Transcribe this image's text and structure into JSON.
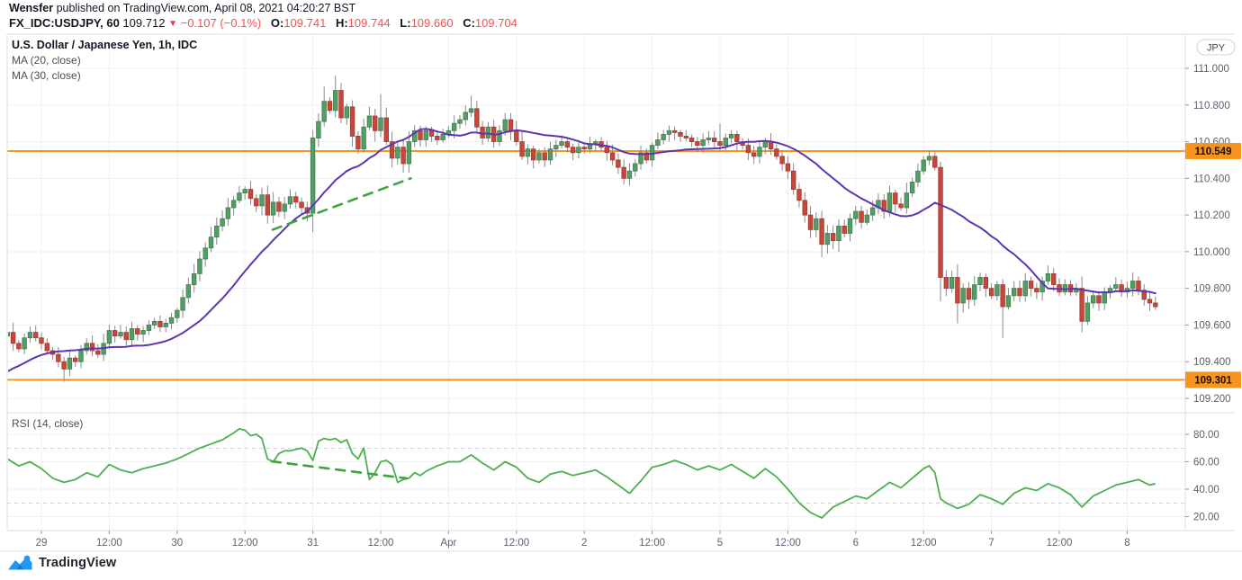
{
  "header": {
    "author": "Wensfer",
    "published": " published on TradingView.com, April 08, 2021 04:20:27 BST"
  },
  "symbol_bar": {
    "symbol": "FX_IDC:USDJPY, 60",
    "price": "109.712",
    "down_arrow": "▼",
    "change": "−0.107 (−0.1%)",
    "o_label": "O:",
    "o": "109.741",
    "h_label": "H:",
    "h": "109.744",
    "l_label": "L:",
    "l": "109.660",
    "c_label": "C:",
    "c": "109.704"
  },
  "legend": {
    "title": "U.S. Dollar / Japanese Yen, 1h, IDC",
    "ma20": "MA (20, close)",
    "ma30": "MA (30, close)",
    "rsi": "RSI (14, close)"
  },
  "logo": {
    "text": "TradingView"
  },
  "colors": {
    "up": "#539e66",
    "up_border": "#3e7f50",
    "down": "#c9463d",
    "down_border": "#a23930",
    "wick": "#8a8a8d",
    "ma20": "#5e35b1",
    "ma30": "#00bcd4",
    "level": "#f7941d",
    "level_text": "#201000",
    "rsi": "#4caf50",
    "divergence": "#41a33e",
    "grid": "#f0f0f2",
    "band": "#cfd2dc",
    "border": "#dcdee5",
    "axis_text": "#5b616e",
    "tick": "#9598a1",
    "accent_red": "#ef5350",
    "logo_blue": "#2196f3"
  },
  "price_axis": {
    "currency_badge": "JPY",
    "ticks": [
      {
        "value": 111.0,
        "label": "111.000"
      },
      {
        "value": 110.8,
        "label": "110.800"
      },
      {
        "value": 110.6,
        "label": "110.600"
      },
      {
        "value": 110.4,
        "label": "110.400"
      },
      {
        "value": 110.2,
        "label": "110.200"
      },
      {
        "value": 110.0,
        "label": "110.000"
      },
      {
        "value": 109.8,
        "label": "109.800"
      },
      {
        "value": 109.6,
        "label": "109.600"
      },
      {
        "value": 109.4,
        "label": "109.400"
      },
      {
        "value": 109.2,
        "label": "109.200"
      }
    ]
  },
  "rsi_axis": {
    "ticks": [
      {
        "value": 80,
        "label": "80.00"
      },
      {
        "value": 60,
        "label": "60.00"
      },
      {
        "value": 40,
        "label": "40.00"
      },
      {
        "value": 20,
        "label": "20.00"
      }
    ]
  },
  "time_axis": {
    "labels": [
      {
        "t": 0,
        "text": "29"
      },
      {
        "t": 12,
        "text": "12:00"
      },
      {
        "t": 24,
        "text": "30"
      },
      {
        "t": 36,
        "text": "12:00"
      },
      {
        "t": 48,
        "text": "31"
      },
      {
        "t": 60,
        "text": "12:00"
      },
      {
        "t": 72,
        "text": "Apr"
      },
      {
        "t": 84,
        "text": "12:00"
      },
      {
        "t": 96,
        "text": "2"
      },
      {
        "t": 108,
        "text": "12:00"
      },
      {
        "t": 120,
        "text": "5"
      },
      {
        "t": 132,
        "text": "12:00"
      },
      {
        "t": 144,
        "text": "6"
      },
      {
        "t": 156,
        "text": "12:00"
      },
      {
        "t": 168,
        "text": "7"
      },
      {
        "t": 180,
        "text": "12:00"
      },
      {
        "t": 192,
        "text": "8"
      }
    ]
  },
  "chart_data": {
    "type": "candlestick",
    "title": "U.S. Dollar / Japanese Yen, 1h, IDC",
    "symbol": "USDJPY",
    "interval": "60",
    "x_unit": "hours since Mar 29 00:00 (weekend hidden)",
    "x_range": [
      -6,
      197
    ],
    "price_view_range": [
      109.14,
      111.19
    ],
    "rsi_view_range": [
      10,
      95
    ],
    "levels": [
      {
        "value": 110.549,
        "label": "110.549"
      },
      {
        "value": 109.301,
        "label": "109.301"
      }
    ],
    "ma": [
      {
        "period": 20,
        "color_key": "ma20"
      },
      {
        "period": 30,
        "color_key": "ma30"
      }
    ],
    "ma_seed": {
      "from": 109.08,
      "to": 109.5,
      "count": 24
    },
    "rsi_band": [
      30,
      70
    ],
    "trendlines": [
      {
        "pane": "price",
        "from": [
          40.9,
          110.12
        ],
        "to": [
          65.3,
          110.4
        ]
      },
      {
        "pane": "rsi",
        "from": [
          40.7,
          60.3
        ],
        "to": [
          64.6,
          47.9
        ]
      }
    ],
    "price_anchors": [
      [
        -6,
        109.56
      ],
      [
        -5,
        109.5
      ],
      [
        -4,
        109.47
      ],
      [
        -3,
        109.53
      ],
      [
        -2,
        109.56
      ],
      [
        -1,
        109.53
      ],
      [
        0,
        109.5
      ],
      [
        1,
        109.46
      ],
      [
        2,
        109.44
      ],
      [
        3,
        109.4
      ],
      [
        4,
        109.36
      ],
      [
        5,
        109.42
      ],
      [
        6,
        109.4
      ],
      [
        7,
        109.46
      ],
      [
        8,
        109.5
      ],
      [
        9,
        109.46
      ],
      [
        10,
        109.44
      ],
      [
        11,
        109.5
      ],
      [
        12,
        109.57
      ],
      [
        13,
        109.54
      ],
      [
        14,
        109.56
      ],
      [
        15,
        109.52
      ],
      [
        16,
        109.58
      ],
      [
        17,
        109.55
      ],
      [
        18,
        109.57
      ],
      [
        19,
        109.6
      ],
      [
        20,
        109.62
      ],
      [
        21,
        109.59
      ],
      [
        22,
        109.61
      ],
      [
        23,
        109.64
      ],
      [
        24,
        109.68
      ],
      [
        25,
        109.75
      ],
      [
        26,
        109.82
      ],
      [
        27,
        109.88
      ],
      [
        28,
        109.96
      ],
      [
        29,
        110.02
      ],
      [
        30,
        110.08
      ],
      [
        31,
        110.14
      ],
      [
        32,
        110.18
      ],
      [
        33,
        110.24
      ],
      [
        34,
        110.28
      ],
      [
        35,
        110.32
      ],
      [
        36,
        110.34
      ],
      [
        37,
        110.29
      ],
      [
        38,
        110.25
      ],
      [
        39,
        110.31
      ],
      [
        40,
        110.2
      ],
      [
        41,
        110.27
      ],
      [
        42,
        110.22
      ],
      [
        43,
        110.26
      ],
      [
        44,
        110.3
      ],
      [
        45,
        110.27
      ],
      [
        46,
        110.24
      ],
      [
        47,
        110.21
      ],
      [
        48,
        110.62
      ],
      [
        49,
        110.71
      ],
      [
        50,
        110.82
      ],
      [
        51,
        110.77
      ],
      [
        52,
        110.88
      ],
      [
        53,
        110.73
      ],
      [
        54,
        110.79
      ],
      [
        55,
        110.63
      ],
      [
        56,
        110.56
      ],
      [
        57,
        110.68
      ],
      [
        58,
        110.74
      ],
      [
        59,
        110.66
      ],
      [
        60,
        110.73
      ],
      [
        61,
        110.6
      ],
      [
        62,
        110.51
      ],
      [
        63,
        110.57
      ],
      [
        64,
        110.48
      ],
      [
        65,
        110.6
      ],
      [
        66,
        110.66
      ],
      [
        67,
        110.61
      ],
      [
        68,
        110.66
      ],
      [
        69,
        110.63
      ],
      [
        70,
        110.61
      ],
      [
        71,
        110.64
      ],
      [
        72,
        110.66
      ],
      [
        73,
        110.7
      ],
      [
        74,
        110.72
      ],
      [
        75,
        110.76
      ],
      [
        76,
        110.78
      ],
      [
        77,
        110.68
      ],
      [
        78,
        110.62
      ],
      [
        79,
        110.68
      ],
      [
        80,
        110.6
      ],
      [
        81,
        110.66
      ],
      [
        82,
        110.72
      ],
      [
        83,
        110.66
      ],
      [
        84,
        110.6
      ],
      [
        85,
        110.52
      ],
      [
        86,
        110.56
      ],
      [
        87,
        110.5
      ],
      [
        88,
        110.54
      ],
      [
        89,
        110.5
      ],
      [
        90,
        110.56
      ],
      [
        91,
        110.58
      ],
      [
        92,
        110.6
      ],
      [
        93,
        110.57
      ],
      [
        94,
        110.54
      ],
      [
        95,
        110.57
      ],
      [
        96,
        110.56
      ],
      [
        97,
        110.59
      ],
      [
        98,
        110.6
      ],
      [
        99,
        110.57
      ],
      [
        100,
        110.54
      ],
      [
        101,
        110.5
      ],
      [
        102,
        110.46
      ],
      [
        103,
        110.4
      ],
      [
        104,
        110.44
      ],
      [
        105,
        110.48
      ],
      [
        106,
        110.54
      ],
      [
        107,
        110.5
      ],
      [
        108,
        110.58
      ],
      [
        109,
        110.61
      ],
      [
        110,
        110.64
      ],
      [
        111,
        110.66
      ],
      [
        112,
        110.65
      ],
      [
        113,
        110.63
      ],
      [
        114,
        110.62
      ],
      [
        115,
        110.6
      ],
      [
        116,
        110.58
      ],
      [
        117,
        110.61
      ],
      [
        118,
        110.62
      ],
      [
        119,
        110.6
      ],
      [
        120,
        110.58
      ],
      [
        121,
        110.62
      ],
      [
        122,
        110.64
      ],
      [
        123,
        110.6
      ],
      [
        124,
        110.58
      ],
      [
        125,
        110.54
      ],
      [
        126,
        110.52
      ],
      [
        127,
        110.57
      ],
      [
        128,
        110.6
      ],
      [
        129,
        110.56
      ],
      [
        130,
        110.52
      ],
      [
        131,
        110.48
      ],
      [
        132,
        110.44
      ],
      [
        133,
        110.34
      ],
      [
        134,
        110.28
      ],
      [
        135,
        110.2
      ],
      [
        136,
        110.12
      ],
      [
        137,
        110.18
      ],
      [
        138,
        110.04
      ],
      [
        139,
        110.1
      ],
      [
        140,
        110.06
      ],
      [
        141,
        110.14
      ],
      [
        142,
        110.1
      ],
      [
        143,
        110.18
      ],
      [
        144,
        110.22
      ],
      [
        145,
        110.16
      ],
      [
        146,
        110.2
      ],
      [
        147,
        110.24
      ],
      [
        148,
        110.28
      ],
      [
        149,
        110.22
      ],
      [
        150,
        110.32
      ],
      [
        151,
        110.26
      ],
      [
        152,
        110.24
      ],
      [
        153,
        110.32
      ],
      [
        154,
        110.38
      ],
      [
        155,
        110.44
      ],
      [
        156,
        110.5
      ],
      [
        157,
        110.52
      ],
      [
        158,
        110.46
      ],
      [
        159,
        109.86
      ],
      [
        160,
        109.8
      ],
      [
        161,
        109.86
      ],
      [
        162,
        109.72
      ],
      [
        163,
        109.8
      ],
      [
        164,
        109.74
      ],
      [
        165,
        109.82
      ],
      [
        166,
        109.86
      ],
      [
        167,
        109.8
      ],
      [
        168,
        109.76
      ],
      [
        169,
        109.82
      ],
      [
        170,
        109.7
      ],
      [
        171,
        109.76
      ],
      [
        172,
        109.8
      ],
      [
        173,
        109.76
      ],
      [
        174,
        109.84
      ],
      [
        175,
        109.8
      ],
      [
        176,
        109.78
      ],
      [
        177,
        109.84
      ],
      [
        178,
        109.88
      ],
      [
        179,
        109.82
      ],
      [
        180,
        109.78
      ],
      [
        181,
        109.82
      ],
      [
        182,
        109.78
      ],
      [
        183,
        109.8
      ],
      [
        184,
        109.62
      ],
      [
        185,
        109.72
      ],
      [
        186,
        109.76
      ],
      [
        187,
        109.72
      ],
      [
        188,
        109.78
      ],
      [
        189,
        109.8
      ],
      [
        190,
        109.82
      ],
      [
        191,
        109.78
      ],
      [
        192,
        109.8
      ],
      [
        193,
        109.84
      ],
      [
        194,
        109.79
      ],
      [
        195,
        109.74
      ],
      [
        196,
        109.72
      ],
      [
        197,
        109.7
      ]
    ],
    "wick_overrides": {
      "4": {
        "low": 109.29
      },
      "50": {
        "high": 110.9
      },
      "52": {
        "high": 110.96
      },
      "53": {
        "high": 110.92
      },
      "60": {
        "high": 110.86
      },
      "76": {
        "high": 110.85
      },
      "104": {
        "low": 110.36
      },
      "120": {
        "high": 110.7
      },
      "138": {
        "low": 109.97
      },
      "159": {
        "high": 110.49
      },
      "162": {
        "low": 109.61
      },
      "170": {
        "low": 109.53
      },
      "184": {
        "low": 109.56
      }
    },
    "rsi_anchors": [
      [
        -6,
        62
      ],
      [
        -4,
        57
      ],
      [
        -2,
        60
      ],
      [
        0,
        55
      ],
      [
        2,
        48
      ],
      [
        4,
        45
      ],
      [
        6,
        47
      ],
      [
        8,
        52
      ],
      [
        10,
        49
      ],
      [
        12,
        58
      ],
      [
        14,
        54
      ],
      [
        16,
        52
      ],
      [
        18,
        55
      ],
      [
        20,
        57
      ],
      [
        22,
        59
      ],
      [
        24,
        62
      ],
      [
        26,
        66
      ],
      [
        28,
        70
      ],
      [
        30,
        73
      ],
      [
        32,
        76
      ],
      [
        34,
        81
      ],
      [
        35,
        84
      ],
      [
        36,
        83
      ],
      [
        37,
        79
      ],
      [
        38,
        80
      ],
      [
        39,
        77
      ],
      [
        40,
        62
      ],
      [
        41,
        60
      ],
      [
        42,
        66
      ],
      [
        43,
        68
      ],
      [
        44,
        68
      ],
      [
        45,
        69
      ],
      [
        46,
        70
      ],
      [
        47,
        68
      ],
      [
        48,
        61
      ],
      [
        49,
        75
      ],
      [
        50,
        77
      ],
      [
        51,
        76
      ],
      [
        52,
        77
      ],
      [
        53,
        74
      ],
      [
        54,
        76
      ],
      [
        55,
        66
      ],
      [
        56,
        62
      ],
      [
        57,
        70
      ],
      [
        58,
        47
      ],
      [
        59,
        52
      ],
      [
        60,
        60
      ],
      [
        61,
        61
      ],
      [
        62,
        58
      ],
      [
        63,
        45
      ],
      [
        64,
        47
      ],
      [
        65,
        48
      ],
      [
        66,
        52
      ],
      [
        67,
        50
      ],
      [
        68,
        53
      ],
      [
        70,
        57
      ],
      [
        72,
        60
      ],
      [
        74,
        60
      ],
      [
        76,
        65
      ],
      [
        78,
        59
      ],
      [
        80,
        54
      ],
      [
        82,
        60
      ],
      [
        84,
        56
      ],
      [
        86,
        48
      ],
      [
        88,
        45
      ],
      [
        90,
        51
      ],
      [
        92,
        53
      ],
      [
        94,
        50
      ],
      [
        96,
        52
      ],
      [
        98,
        54
      ],
      [
        100,
        49
      ],
      [
        102,
        43
      ],
      [
        104,
        37
      ],
      [
        106,
        46
      ],
      [
        108,
        56
      ],
      [
        110,
        58
      ],
      [
        112,
        61
      ],
      [
        114,
        58
      ],
      [
        116,
        54
      ],
      [
        118,
        57
      ],
      [
        120,
        54
      ],
      [
        122,
        58
      ],
      [
        124,
        53
      ],
      [
        126,
        48
      ],
      [
        128,
        55
      ],
      [
        130,
        49
      ],
      [
        132,
        40
      ],
      [
        134,
        30
      ],
      [
        136,
        23
      ],
      [
        138,
        19
      ],
      [
        140,
        27
      ],
      [
        142,
        31
      ],
      [
        144,
        35
      ],
      [
        146,
        33
      ],
      [
        148,
        39
      ],
      [
        150,
        45
      ],
      [
        152,
        41
      ],
      [
        154,
        48
      ],
      [
        156,
        55
      ],
      [
        157,
        57
      ],
      [
        158,
        52
      ],
      [
        159,
        33
      ],
      [
        160,
        30
      ],
      [
        162,
        26
      ],
      [
        164,
        29
      ],
      [
        166,
        36
      ],
      [
        168,
        33
      ],
      [
        170,
        29
      ],
      [
        172,
        37
      ],
      [
        174,
        41
      ],
      [
        176,
        39
      ],
      [
        178,
        44
      ],
      [
        180,
        41
      ],
      [
        182,
        36
      ],
      [
        184,
        27
      ],
      [
        186,
        35
      ],
      [
        188,
        39
      ],
      [
        190,
        43
      ],
      [
        192,
        45
      ],
      [
        194,
        47
      ],
      [
        196,
        43
      ],
      [
        197,
        44
      ]
    ]
  }
}
